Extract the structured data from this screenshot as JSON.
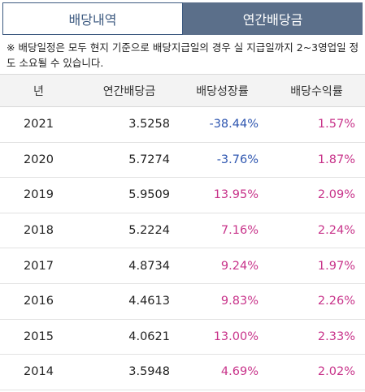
{
  "tabs": [
    {
      "label": "배당내역",
      "active": false
    },
    {
      "label": "연간배당금",
      "active": true
    }
  ],
  "notice": "※ 배당일정은 모두 현지 기준으로 배당지급일의 경우 실 지급일까지 2~3영업일 정도 소요될 수 있습니다.",
  "table": {
    "headers": [
      "년",
      "연간배당금",
      "배당성장률",
      "배당수익률"
    ],
    "rows": [
      {
        "year": "2021",
        "dividend": "3.5258",
        "growth": "-38.44%",
        "yield": "1.57%"
      },
      {
        "year": "2020",
        "dividend": "5.7274",
        "growth": "-3.76%",
        "yield": "1.87%"
      },
      {
        "year": "2019",
        "dividend": "5.9509",
        "growth": "13.95%",
        "yield": "2.09%"
      },
      {
        "year": "2018",
        "dividend": "5.2224",
        "growth": "7.16%",
        "yield": "2.24%"
      },
      {
        "year": "2017",
        "dividend": "4.8734",
        "growth": "9.24%",
        "yield": "1.97%"
      },
      {
        "year": "2016",
        "dividend": "4.4613",
        "growth": "9.83%",
        "yield": "2.26%"
      },
      {
        "year": "2015",
        "dividend": "4.0621",
        "growth": "13.00%",
        "yield": "2.33%"
      },
      {
        "year": "2014",
        "dividend": "3.5948",
        "growth": "4.69%",
        "yield": "2.02%"
      }
    ]
  },
  "colors": {
    "negative": "#2e56b0",
    "positive": "#c8338a",
    "tab_active": "#5b6f8a"
  }
}
